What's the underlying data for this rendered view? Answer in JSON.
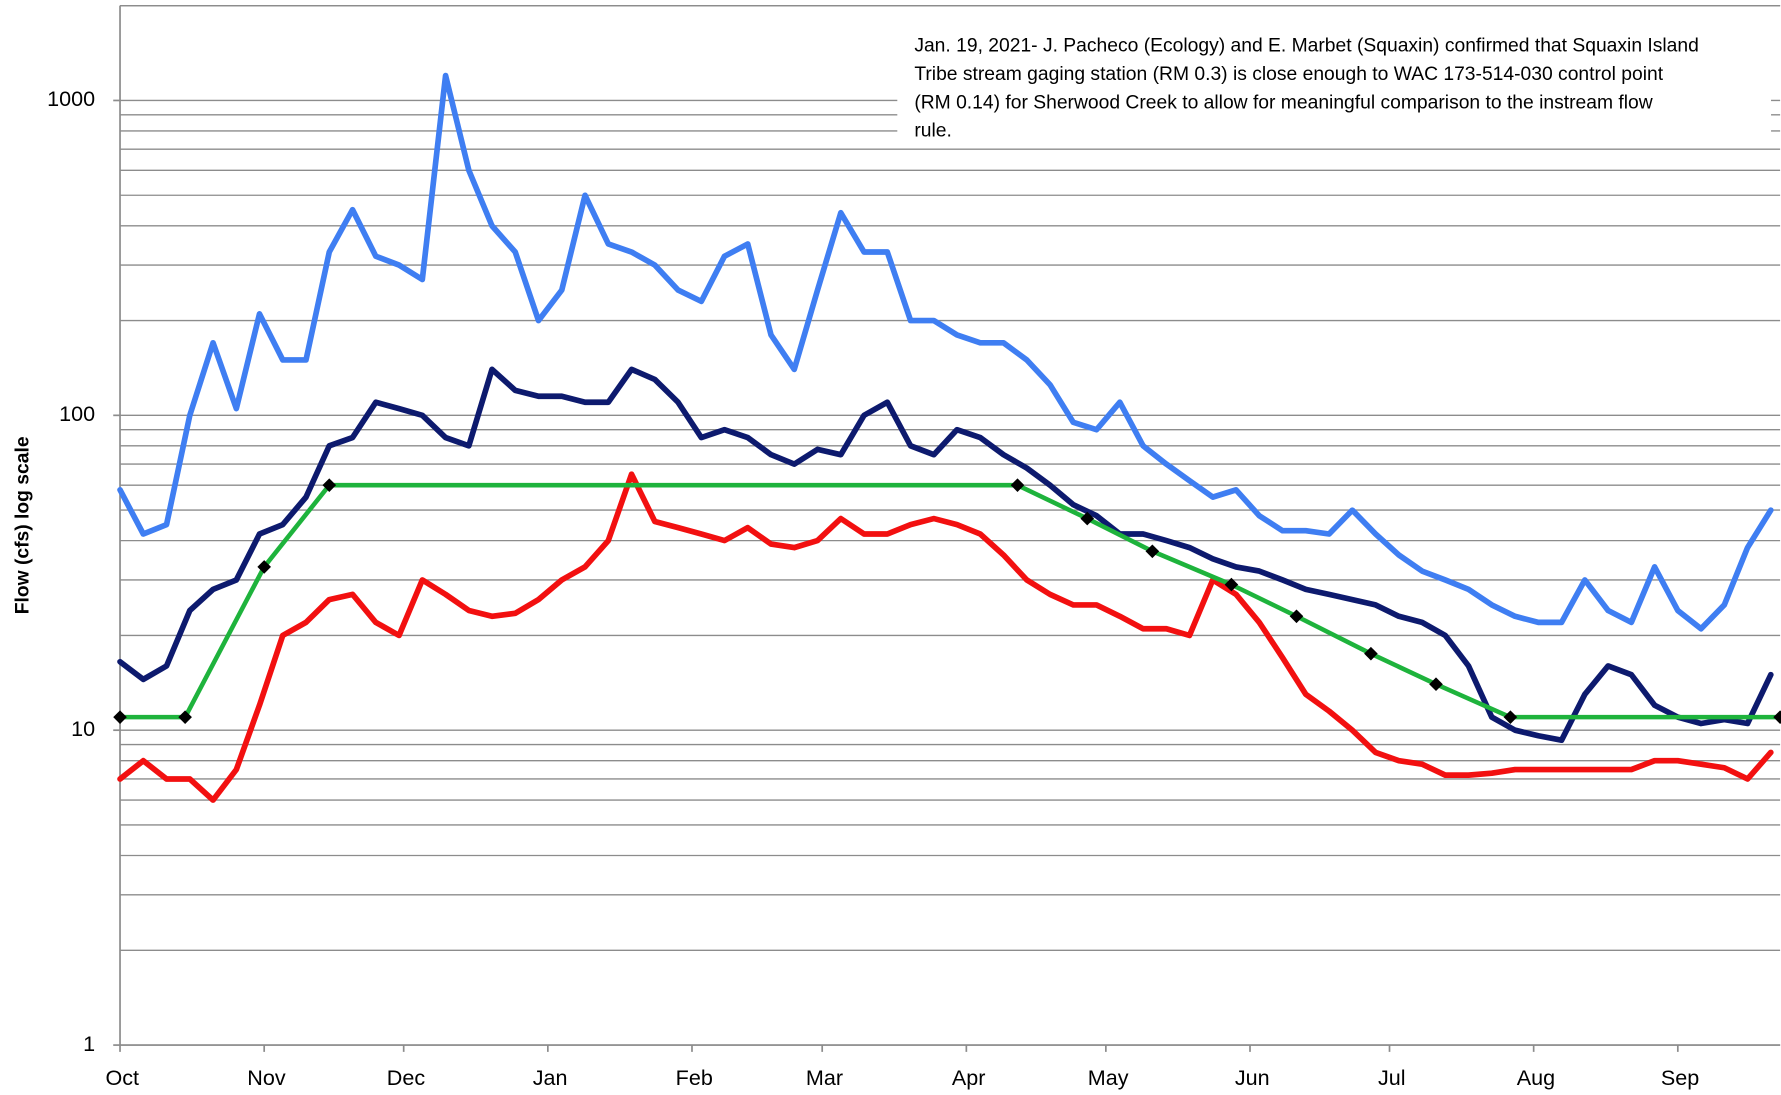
{
  "chart_data": {
    "type": "line",
    "y_label": "Flow (cfs) log scale",
    "annotation": [
      "Jan. 19, 2021- J. Pacheco (Ecology) and E. Marbet (Squaxin) confirmed that Squaxin Island",
      "Tribe stream gaging station (RM 0.3) is close enough to WAC 173-514-030 control point",
      "(RM 0.14) for Sherwood Creek to allow for meaningful comparison to the instream flow",
      "rule."
    ],
    "log_y": true,
    "grid": true,
    "ylim": [
      1,
      2000
    ],
    "yticks": [
      1,
      10,
      100,
      1000
    ],
    "yminor": [
      2,
      3,
      4,
      5,
      6,
      7,
      8,
      9,
      20,
      30,
      40,
      50,
      60,
      70,
      80,
      90,
      200,
      300,
      400,
      500,
      600,
      700,
      800,
      900,
      2000
    ],
    "xlim": [
      0,
      357
    ],
    "xticks": [
      {
        "value": 0,
        "label": "Oct"
      },
      {
        "value": 31,
        "label": "Nov"
      },
      {
        "value": 61,
        "label": "Dec"
      },
      {
        "value": 92,
        "label": "Jan"
      },
      {
        "value": 123,
        "label": "Feb"
      },
      {
        "value": 151,
        "label": "Mar"
      },
      {
        "value": 182,
        "label": "Apr"
      },
      {
        "value": 212,
        "label": "May"
      },
      {
        "value": 243,
        "label": "Jun"
      },
      {
        "value": 273,
        "label": "Jul"
      },
      {
        "value": 304,
        "label": "Aug"
      },
      {
        "value": 335,
        "label": "Sep"
      }
    ],
    "series": [
      {
        "color": "#3f7ef2",
        "x": [
          0,
          5,
          10,
          15,
          20,
          25,
          30,
          35,
          40,
          45,
          50,
          55,
          60,
          65,
          70,
          75,
          80,
          85,
          90,
          95,
          100,
          105,
          110,
          115,
          120,
          125,
          130,
          135,
          140,
          145,
          150,
          155,
          160,
          165,
          170,
          175,
          180,
          185,
          190,
          195,
          200,
          205,
          210,
          215,
          220,
          225,
          230,
          235,
          240,
          245,
          250,
          255,
          260,
          265,
          270,
          275,
          280,
          285,
          290,
          295,
          300,
          305,
          310,
          315,
          320,
          325,
          330,
          335,
          340,
          345,
          350,
          355
        ],
        "values": [
          58,
          42,
          45,
          100,
          170,
          105,
          210,
          150,
          150,
          330,
          450,
          320,
          300,
          270,
          1200,
          600,
          400,
          330,
          200,
          250,
          500,
          350,
          330,
          300,
          250,
          230,
          320,
          350,
          180,
          140,
          250,
          440,
          330,
          330,
          200,
          200,
          180,
          170,
          170,
          150,
          125,
          95,
          90,
          110,
          80,
          70,
          62,
          55,
          58,
          48,
          43,
          43,
          42,
          50,
          42,
          36,
          32,
          30,
          28,
          25,
          23,
          22,
          22,
          30,
          24,
          22,
          33,
          24,
          21,
          25,
          38,
          50
        ]
      },
      {
        "color": "#0d1a6e",
        "x": [
          0,
          5,
          10,
          15,
          20,
          25,
          30,
          35,
          40,
          45,
          50,
          55,
          60,
          65,
          70,
          75,
          80,
          85,
          90,
          95,
          100,
          105,
          110,
          115,
          120,
          125,
          130,
          135,
          140,
          145,
          150,
          155,
          160,
          165,
          170,
          175,
          180,
          185,
          190,
          195,
          200,
          205,
          210,
          215,
          220,
          225,
          230,
          235,
          240,
          245,
          250,
          255,
          260,
          265,
          270,
          275,
          280,
          285,
          290,
          295,
          300,
          305,
          310,
          315,
          320,
          325,
          330,
          335,
          340,
          345,
          350,
          355
        ],
        "values": [
          16.5,
          14.5,
          16,
          24,
          28,
          30,
          42,
          45,
          55,
          80,
          85,
          110,
          105,
          100,
          85,
          80,
          140,
          120,
          115,
          115,
          110,
          110,
          140,
          130,
          110,
          85,
          90,
          85,
          75,
          70,
          78,
          75,
          100,
          110,
          80,
          75,
          90,
          85,
          75,
          68,
          60,
          52,
          48,
          42,
          42,
          40,
          38,
          35,
          33,
          32,
          30,
          28,
          27,
          26,
          25,
          23,
          22,
          20,
          16,
          11,
          10,
          9.6,
          9.3,
          13,
          16,
          15,
          12,
          11,
          10.5,
          10.8,
          10.5,
          15
        ]
      },
      {
        "color": "#f21010",
        "x": [
          0,
          5,
          10,
          15,
          20,
          25,
          30,
          35,
          40,
          45,
          50,
          55,
          60,
          65,
          70,
          75,
          80,
          85,
          90,
          95,
          100,
          105,
          110,
          115,
          120,
          125,
          130,
          135,
          140,
          145,
          150,
          155,
          160,
          165,
          170,
          175,
          180,
          185,
          190,
          195,
          200,
          205,
          210,
          215,
          220,
          225,
          230,
          235,
          240,
          245,
          250,
          255,
          260,
          265,
          270,
          275,
          280,
          285,
          290,
          295,
          300,
          305,
          310,
          315,
          320,
          325,
          330,
          335,
          340,
          345,
          350,
          355
        ],
        "values": [
          7,
          8,
          7,
          7,
          6,
          7.5,
          12,
          20,
          22,
          26,
          27,
          22,
          20,
          30,
          27,
          24,
          23,
          23.5,
          26,
          30,
          33,
          40,
          65,
          46,
          44,
          42,
          40,
          44,
          39,
          38,
          40,
          47,
          42,
          42,
          45,
          47,
          45,
          42,
          36,
          30,
          27,
          25,
          25,
          23,
          21,
          21,
          20,
          30,
          27,
          22,
          17,
          13,
          11.5,
          10,
          8.5,
          8,
          7.8,
          7.2,
          7.2,
          7.3,
          7.5,
          7.5,
          7.5,
          7.5,
          7.5,
          7.5,
          8,
          8,
          7.8,
          7.6,
          7,
          8.5
        ]
      },
      {
        "color": "#1eb33c",
        "markers": true,
        "x": [
          0,
          14,
          31,
          45,
          193,
          208,
          222,
          239,
          253,
          269,
          283,
          299,
          357
        ],
        "values": [
          11,
          11,
          33,
          60,
          60,
          47,
          37,
          29,
          23,
          17.5,
          14,
          11,
          11
        ]
      }
    ]
  }
}
